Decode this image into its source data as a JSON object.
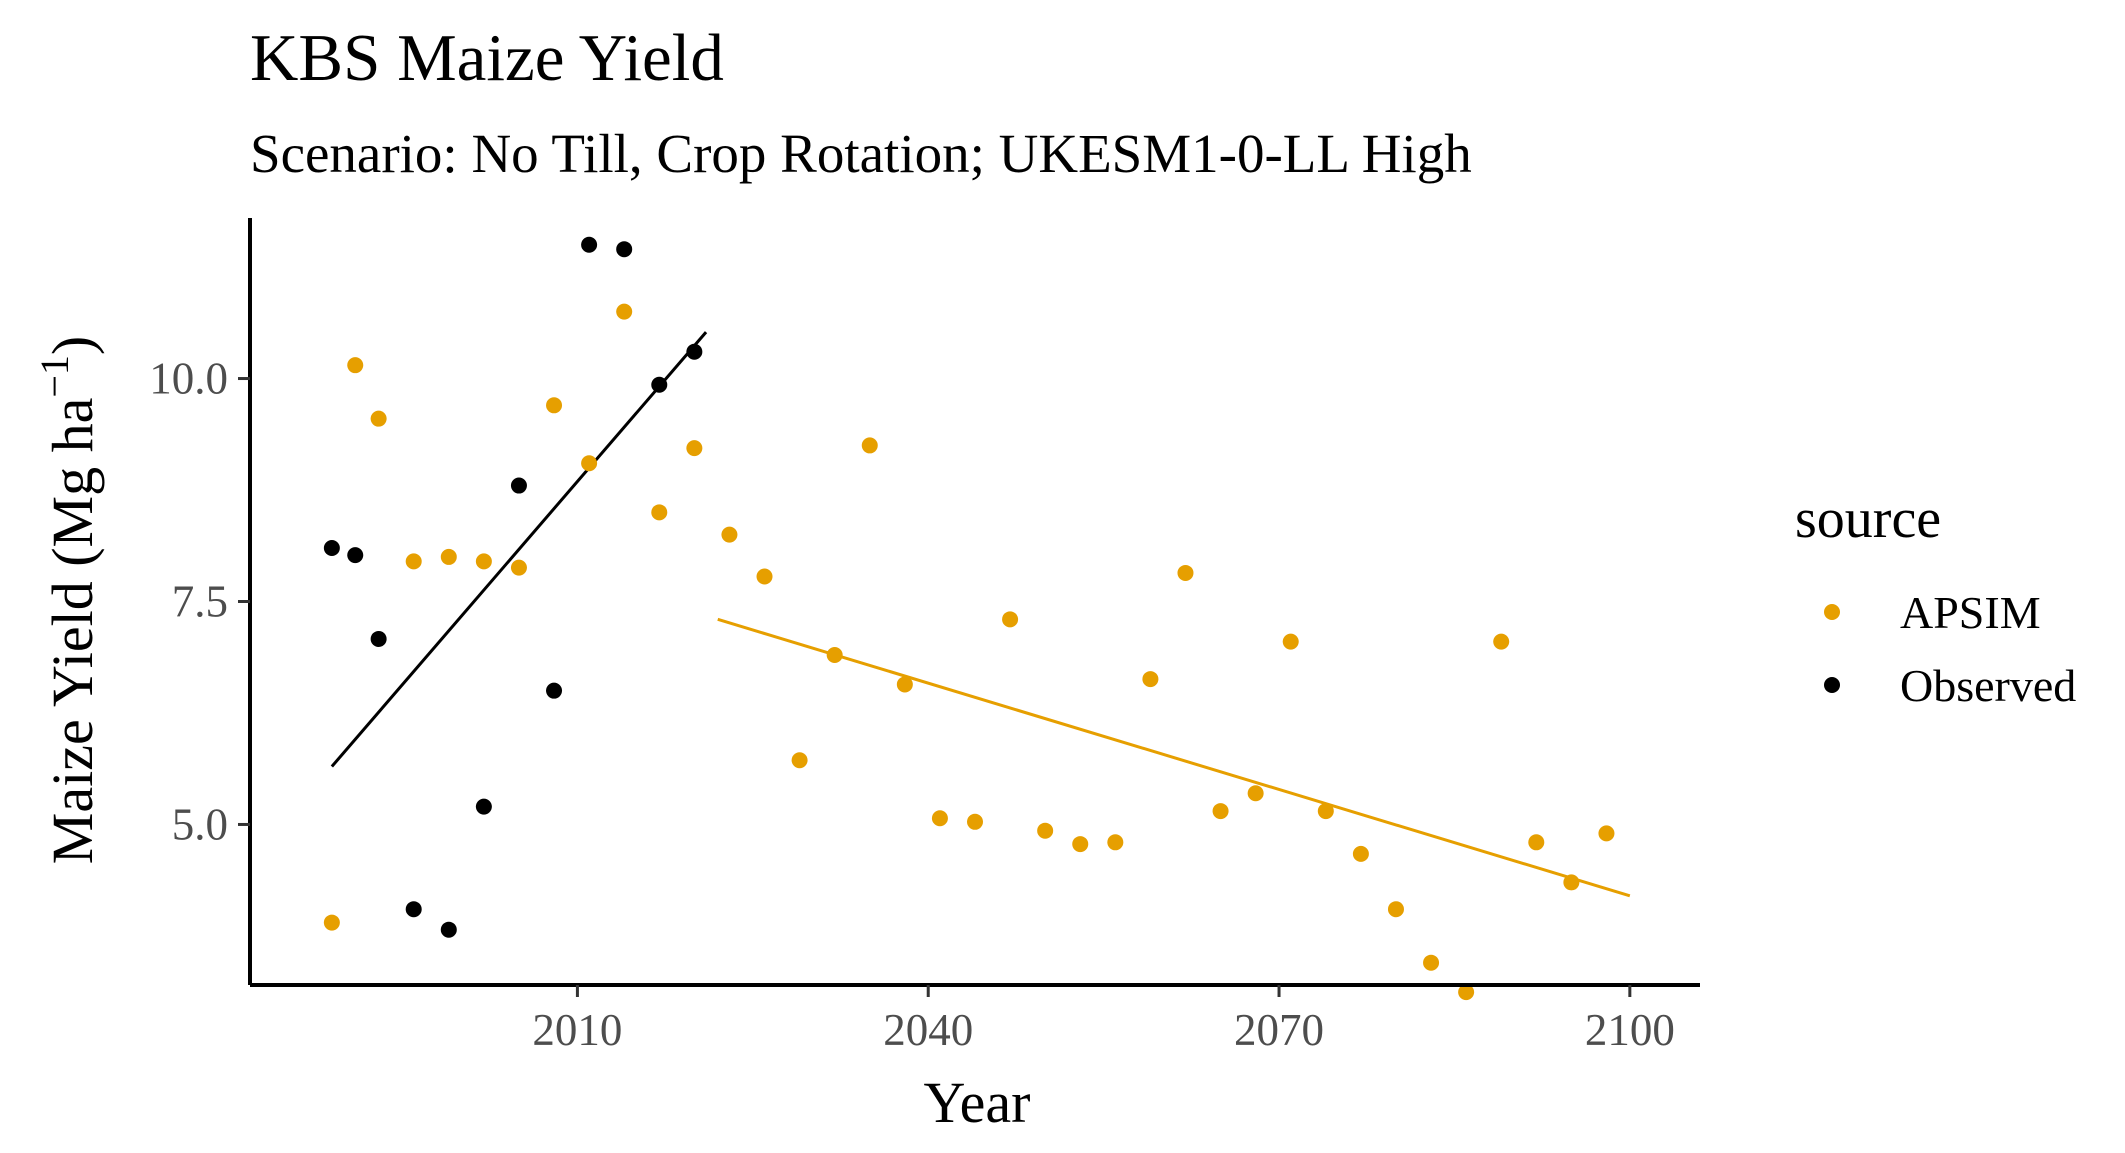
{
  "chart_data": {
    "type": "scatter",
    "title": "KBS Maize Yield",
    "subtitle": "Scenario: No Till, Crop Rotation; UKESM1-0-LL High",
    "xlabel": "Year",
    "ylabel_main": "Maize Yield (Mg ha",
    "ylabel_sup": "−1",
    "ylabel_close": ")",
    "xlim": [
      1982,
      2106
    ],
    "ylim": [
      3.2,
      11.8
    ],
    "x_ticks": [
      2010,
      2040,
      2070,
      2100
    ],
    "y_ticks": [
      5.0,
      7.5,
      10.0
    ],
    "x_tick_labels": [
      "2010",
      "2040",
      "2070",
      "2100"
    ],
    "y_tick_labels": [
      "5.0",
      "7.5",
      "10.0"
    ],
    "grid": false,
    "legend_position": "right",
    "legend_title": "source",
    "series": [
      {
        "name": "APSIM",
        "color": "#E69F00",
        "points": [
          [
            1989,
            3.9
          ],
          [
            1991,
            10.15
          ],
          [
            1993,
            9.55
          ],
          [
            1996,
            7.95
          ],
          [
            1999,
            8.0
          ],
          [
            2002,
            7.95
          ],
          [
            2005,
            7.88
          ],
          [
            2008,
            9.7
          ],
          [
            2011,
            9.05
          ],
          [
            2014,
            10.75
          ],
          [
            2017,
            8.5
          ],
          [
            2020,
            9.22
          ],
          [
            2023,
            8.25
          ],
          [
            2026,
            7.78
          ],
          [
            2029,
            5.72
          ],
          [
            2032,
            6.9
          ],
          [
            2035,
            9.25
          ],
          [
            2038,
            6.57
          ],
          [
            2041,
            5.07
          ],
          [
            2044,
            5.03
          ],
          [
            2047,
            7.3
          ],
          [
            2050,
            4.93
          ],
          [
            2053,
            4.78
          ],
          [
            2056,
            4.8
          ],
          [
            2059,
            6.63
          ],
          [
            2062,
            7.82
          ],
          [
            2065,
            5.15
          ],
          [
            2068,
            5.35
          ],
          [
            2071,
            7.05
          ],
          [
            2074,
            5.15
          ],
          [
            2077,
            4.67
          ],
          [
            2080,
            4.05
          ],
          [
            2083,
            3.45
          ],
          [
            2086,
            3.12
          ],
          [
            2089,
            7.05
          ],
          [
            2092,
            4.8
          ],
          [
            2095,
            4.35
          ],
          [
            2098,
            4.9
          ]
        ],
        "trend": {
          "x": [
            2022,
            2100
          ],
          "y": [
            7.3,
            4.2
          ]
        }
      },
      {
        "name": "Observed",
        "color": "#000000",
        "points": [
          [
            1989,
            8.1
          ],
          [
            1991,
            8.02
          ],
          [
            1993,
            7.08
          ],
          [
            1996,
            4.05
          ],
          [
            1999,
            3.82
          ],
          [
            2002,
            5.2
          ],
          [
            2005,
            8.8
          ],
          [
            2008,
            6.5
          ],
          [
            2011,
            11.5
          ],
          [
            2014,
            11.45
          ],
          [
            2017,
            9.93
          ],
          [
            2020,
            10.3
          ]
        ],
        "trend": {
          "x": [
            1989,
            2021
          ],
          "y": [
            5.65,
            10.52
          ]
        }
      }
    ]
  }
}
